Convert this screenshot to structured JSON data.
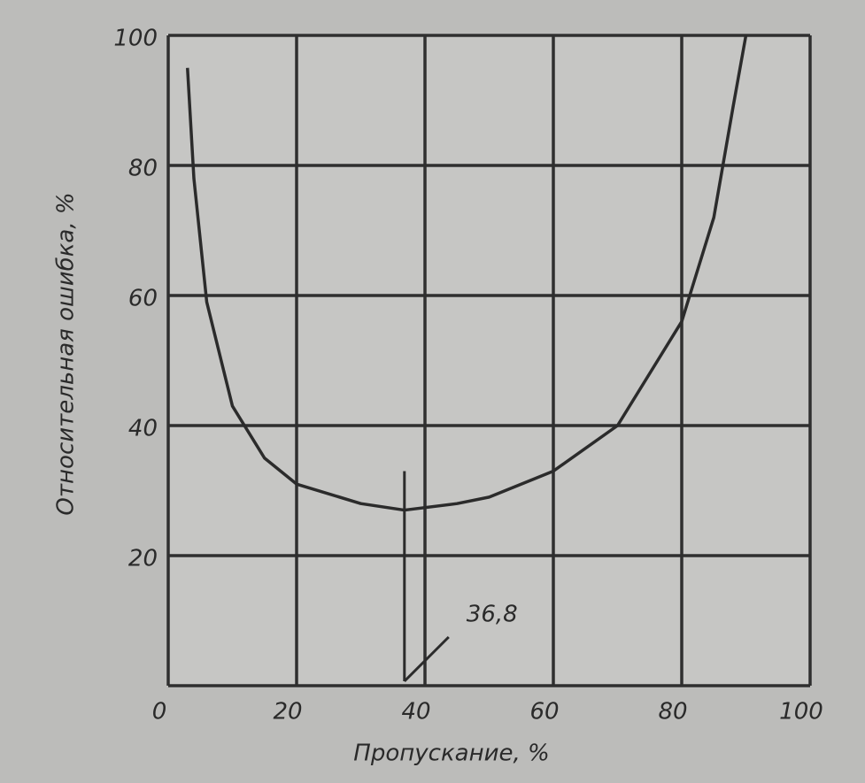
{
  "chart_data": {
    "type": "line",
    "x_label": "Пропускание, %",
    "y_label": "Относительная ошибка, %",
    "series": [
      {
        "color": "#2b2b2b",
        "x": [
          3,
          4,
          6,
          10,
          15,
          20,
          30,
          36.8,
          45,
          50,
          60,
          70,
          80,
          85,
          88,
          90
        ],
        "values": [
          95,
          78,
          59,
          43,
          35,
          31,
          28,
          27,
          28,
          29,
          33,
          40,
          56,
          72,
          89,
          100
        ]
      }
    ],
    "xlim": [
      0,
      100
    ],
    "xticks": [
      0,
      20,
      40,
      60,
      80,
      100
    ],
    "ylim": [
      0,
      100
    ],
    "yticks": [
      20,
      40,
      60,
      80,
      100
    ],
    "grid": true,
    "annotation": {
      "value": 36.8,
      "label": "36,8"
    }
  }
}
